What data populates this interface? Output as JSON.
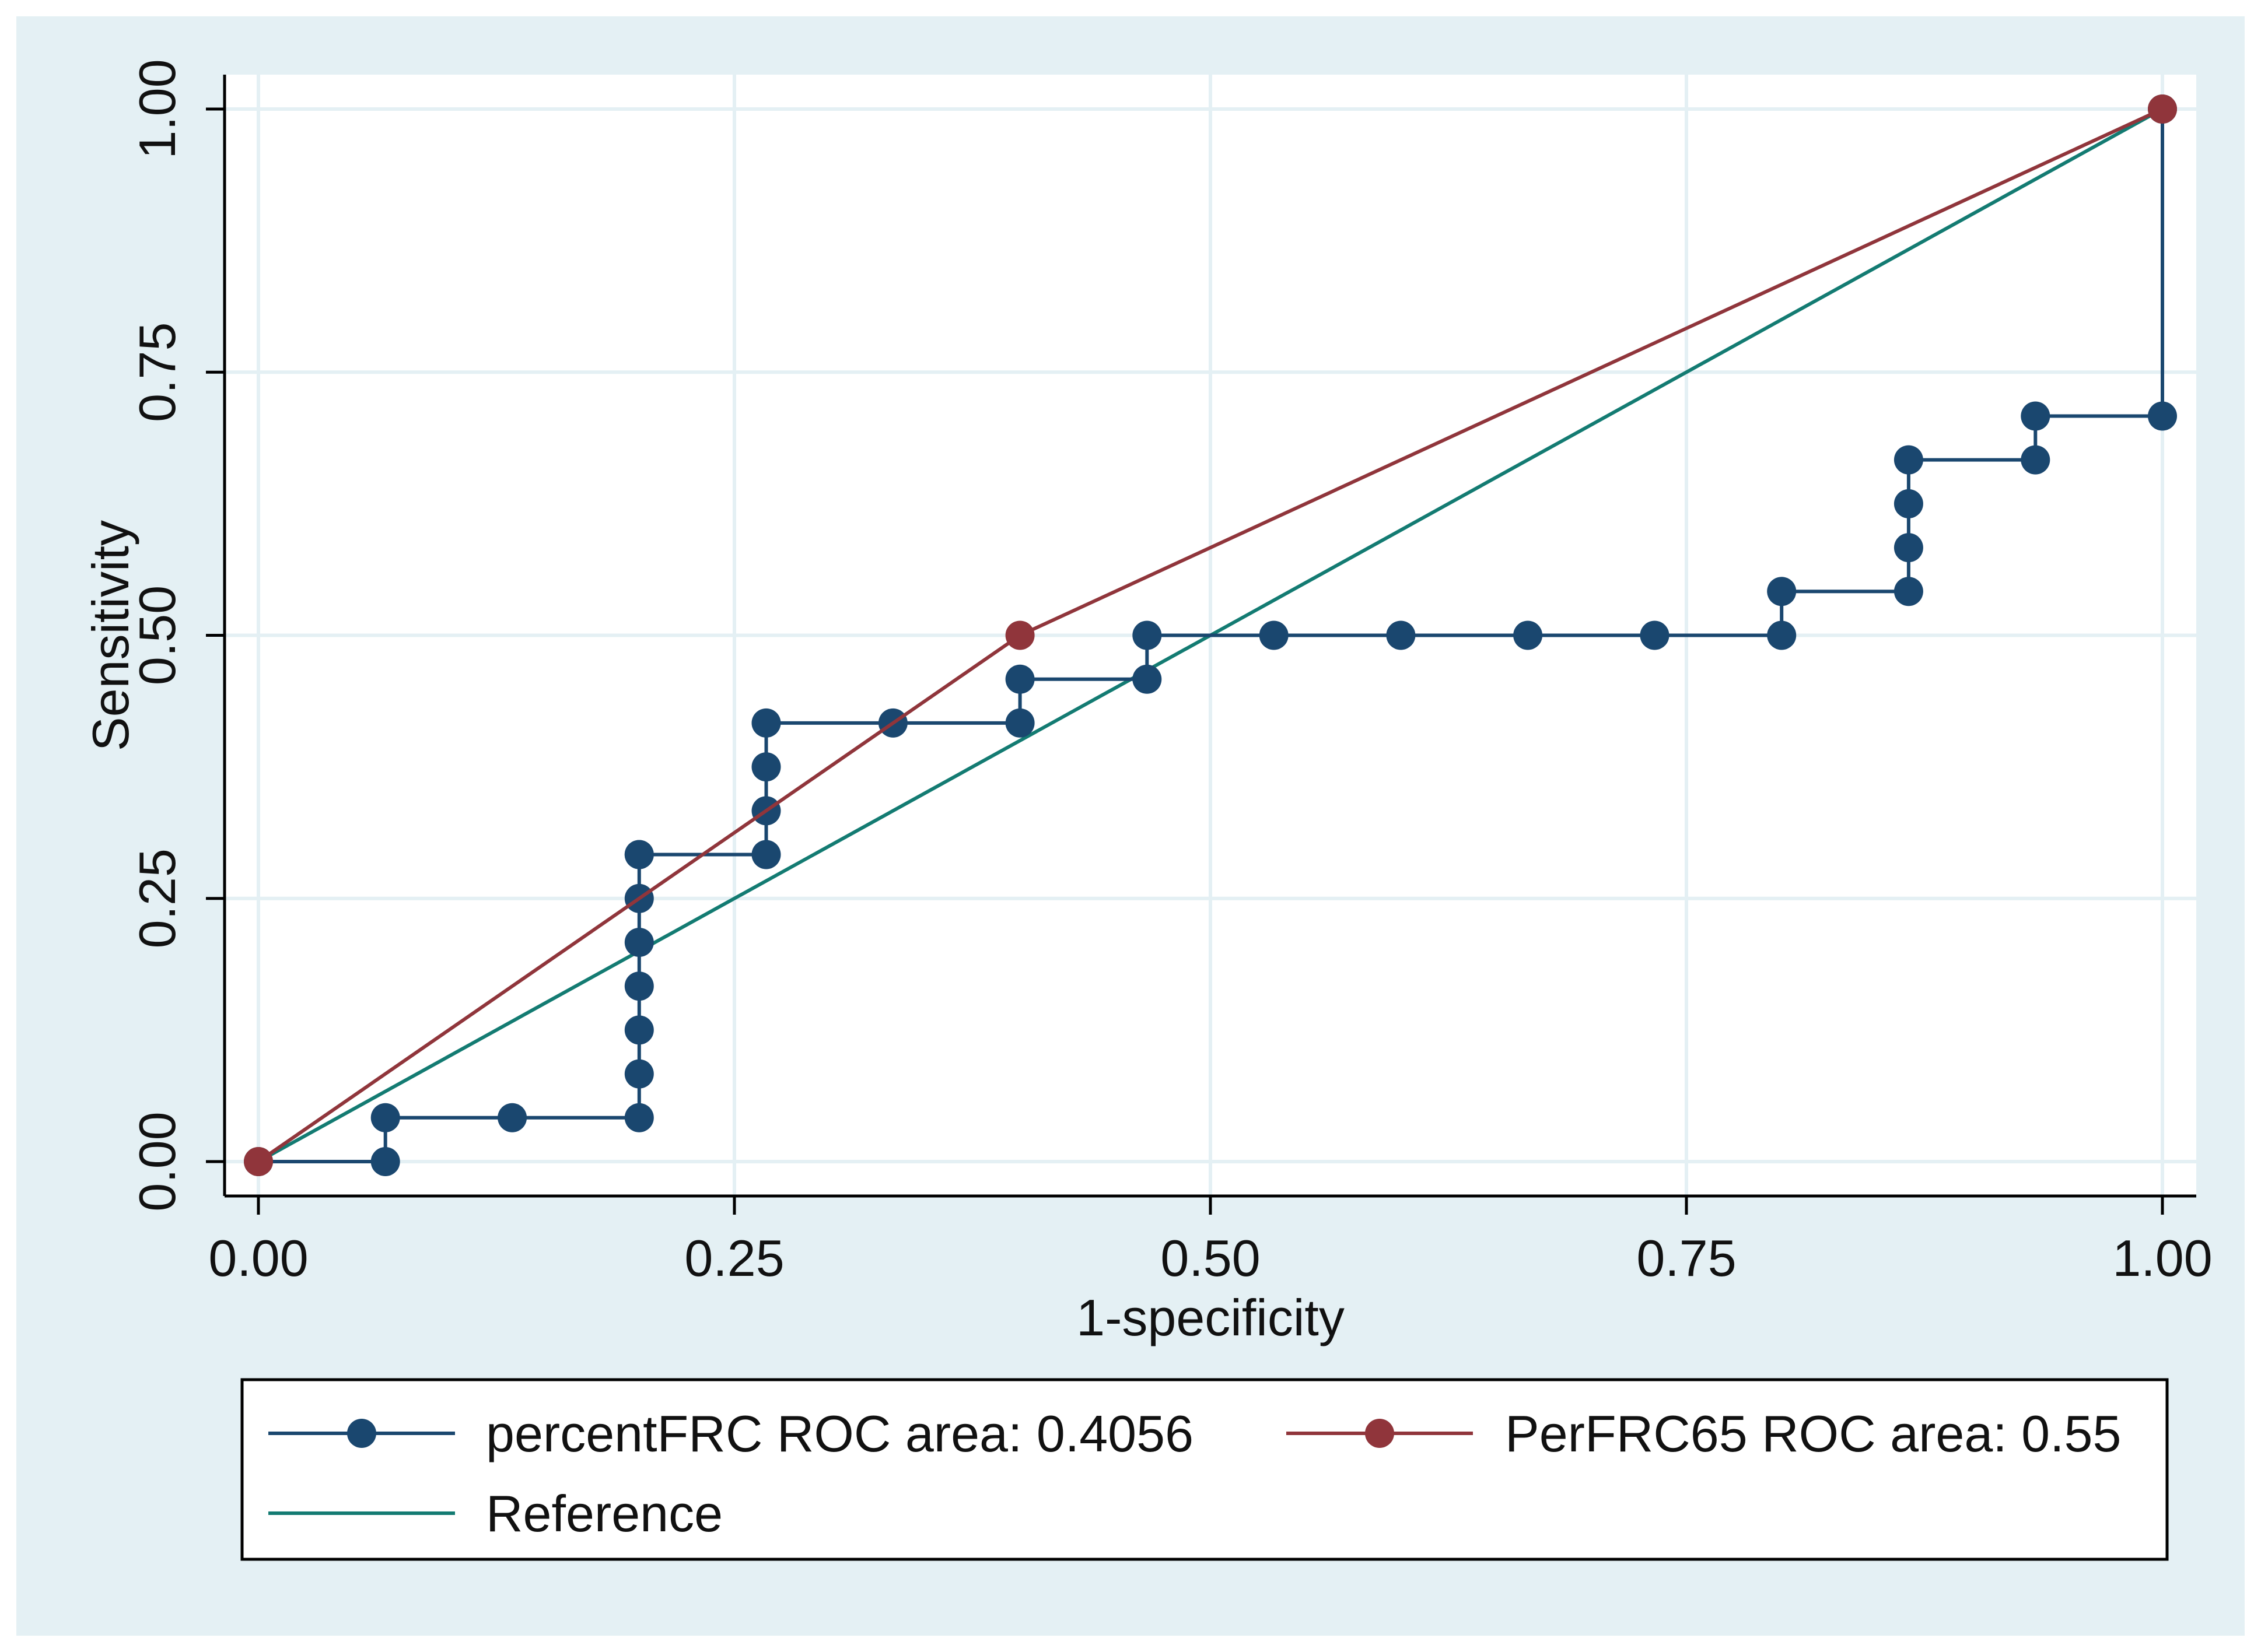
{
  "chart_data": {
    "type": "line",
    "title": "",
    "xlabel": "1-specificity",
    "ylabel": "Sensitivity",
    "xlim": [
      0,
      1
    ],
    "ylim": [
      0,
      1
    ],
    "xticks": [
      0,
      0.25,
      0.5,
      0.75,
      1.0
    ],
    "xtick_labels": [
      "0.00",
      "0.25",
      "0.50",
      "0.75",
      "1.00"
    ],
    "yticks": [
      0,
      0.25,
      0.5,
      0.75,
      1.0
    ],
    "ytick_labels": [
      "0.00",
      "0.25",
      "0.50",
      "0.75",
      "1.00"
    ],
    "grid": true,
    "legend_position": "bottom",
    "colors": {
      "background": "#e4f0f4",
      "plot_bg": "#ffffff",
      "grid": "#e4f0f4",
      "frame": "#000000"
    },
    "series": [
      {
        "name": "percentFRC ROC area: 0.4056",
        "color": "#1a476f",
        "markers": true,
        "step": true,
        "x": [
          0,
          0.0667,
          0.0667,
          0.1333,
          0.2,
          0.2,
          0.2,
          0.2,
          0.2,
          0.2,
          0.2,
          0.2,
          0.2667,
          0.2667,
          0.2667,
          0.2667,
          0.3333,
          0.4,
          0.4,
          0.4667,
          0.4667,
          0.5333,
          0.6,
          0.6667,
          0.7333,
          0.8,
          0.8,
          0.8667,
          0.8667,
          0.8667,
          0.8667,
          0.9333,
          0.9333,
          1.0,
          1.0
        ],
        "y": [
          0,
          0,
          0.0417,
          0.0417,
          0.0417,
          0.0833,
          0.125,
          0.1667,
          0.2083,
          0.25,
          0.2917,
          0.2917,
          0.2917,
          0.3333,
          0.375,
          0.4167,
          0.4167,
          0.4167,
          0.4583,
          0.4583,
          0.5,
          0.5,
          0.5,
          0.5,
          0.5,
          0.5,
          0.5417,
          0.5417,
          0.5833,
          0.625,
          0.6667,
          0.6667,
          0.7083,
          0.7083,
          1.0
        ]
      },
      {
        "name": "PerFRC65 ROC area: 0.55",
        "color": "#90353b",
        "markers": true,
        "step": false,
        "x": [
          0,
          0.4,
          1.0
        ],
        "y": [
          0,
          0.5,
          1.0
        ]
      },
      {
        "name": "Reference",
        "color": "#137b72",
        "markers": false,
        "step": false,
        "x": [
          0,
          1.0
        ],
        "y": [
          0,
          1.0
        ]
      }
    ]
  }
}
